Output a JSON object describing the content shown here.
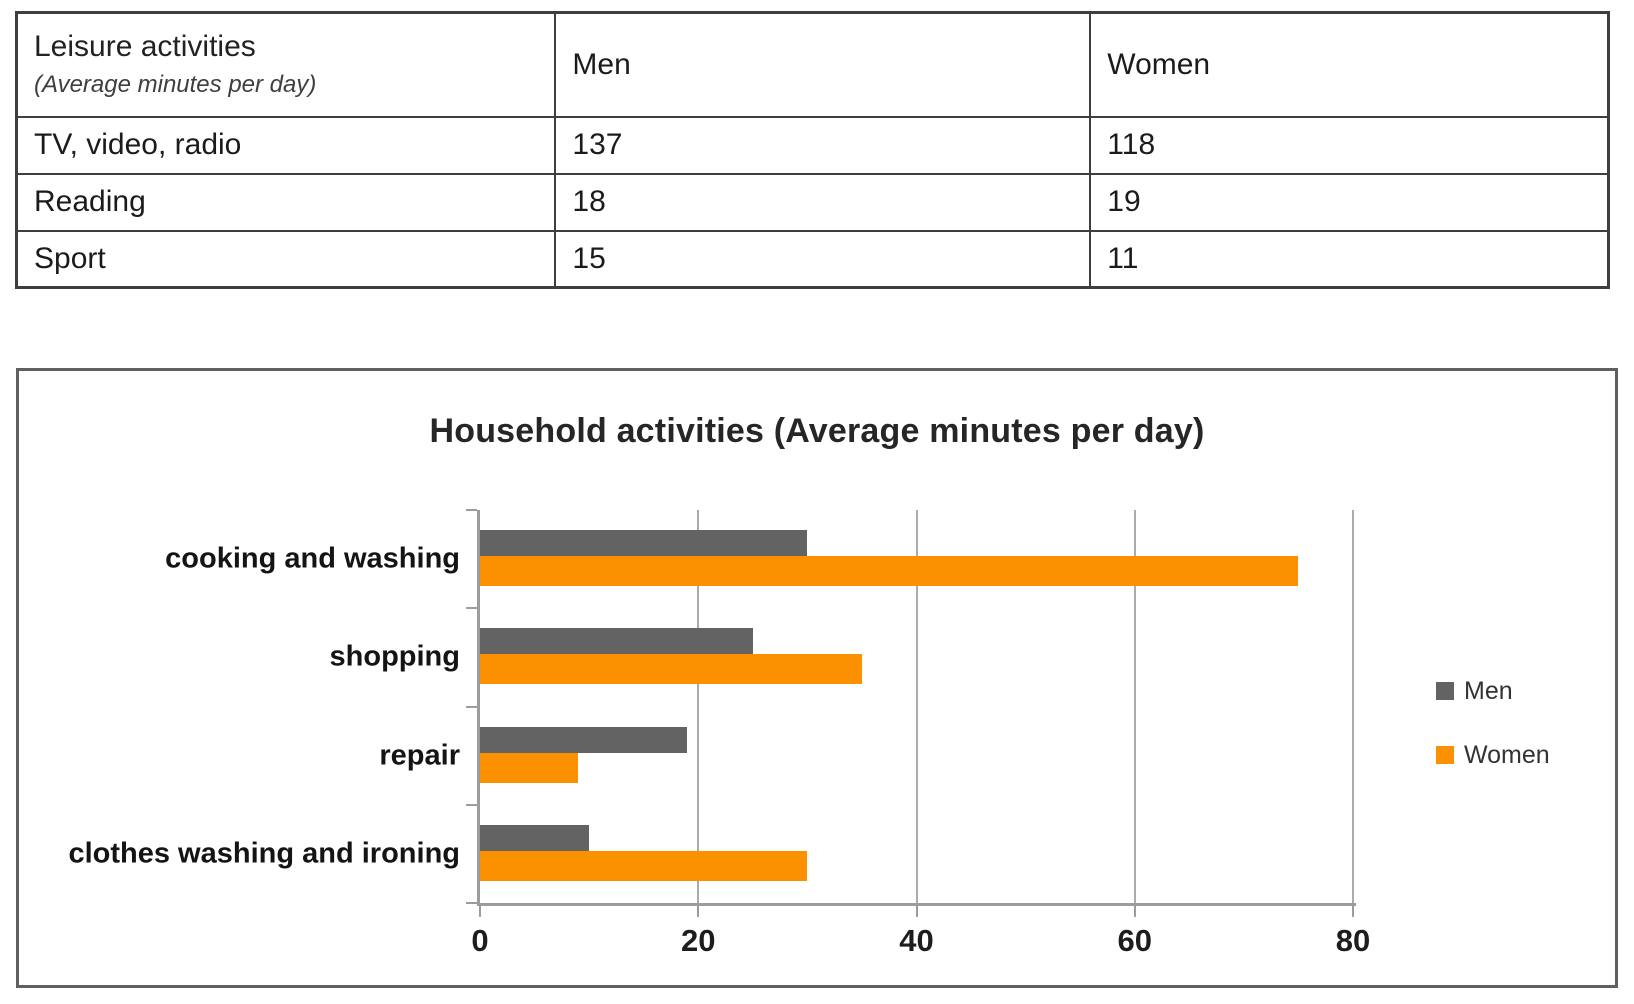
{
  "table": {
    "header": {
      "col1_title": "Leisure activities",
      "col1_subtitle": "(Average minutes per day)",
      "col2": "Men",
      "col3": "Women"
    },
    "rows": [
      {
        "activity": "TV, video, radio",
        "men": "137",
        "women": "118"
      },
      {
        "activity": "Reading",
        "men": "18",
        "women": "19"
      },
      {
        "activity": "Sport",
        "men": "15",
        "women": "11"
      }
    ]
  },
  "chart_data": {
    "type": "bar",
    "orientation": "horizontal",
    "title": "Household activities (Average minutes per day)",
    "categories": [
      "cooking and washing",
      "shopping",
      "repair",
      "clothes washing and ironing"
    ],
    "series": [
      {
        "name": "Men",
        "color": "#636363",
        "values": [
          30,
          25,
          19,
          10
        ]
      },
      {
        "name": "Women",
        "color": "#FB9100",
        "values": [
          75,
          35,
          9,
          30
        ]
      }
    ],
    "xlim": [
      0,
      80
    ],
    "xticks": [
      0,
      20,
      40,
      60,
      80
    ],
    "grid": true,
    "legend_position": "right",
    "xlabel": "",
    "ylabel": ""
  }
}
